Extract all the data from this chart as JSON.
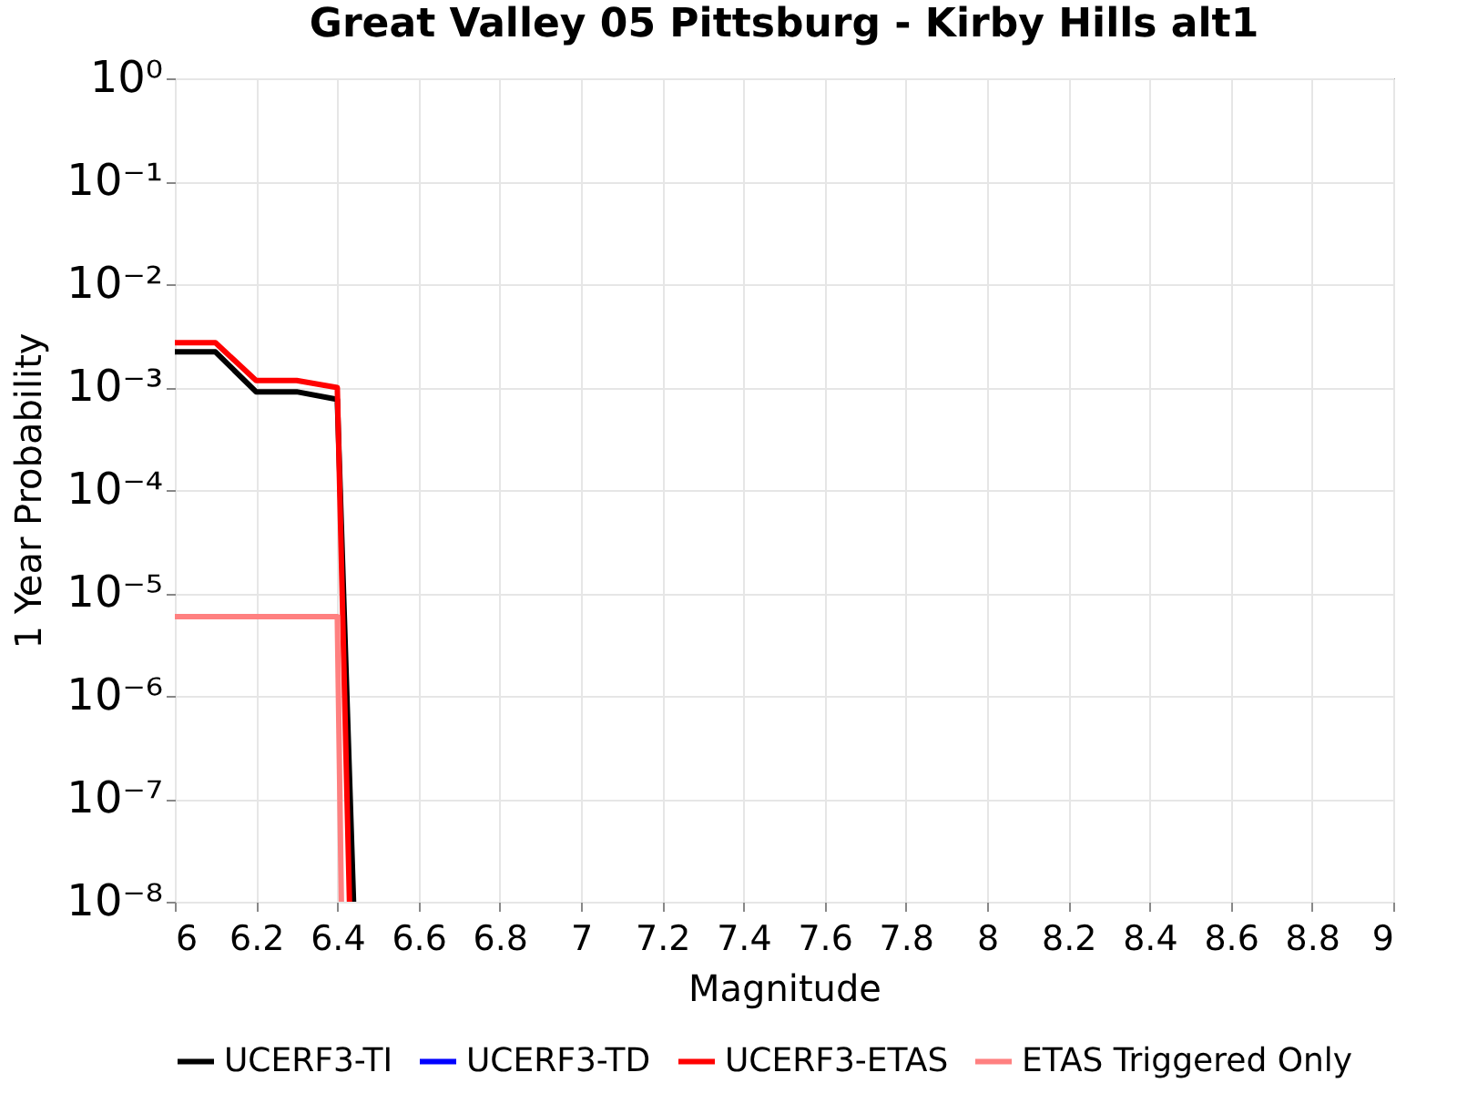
{
  "chart_data": {
    "type": "line",
    "title": "Great Valley 05 Pittsburg - Kirby Hills alt1",
    "xlabel": "Magnitude",
    "ylabel": "1 Year Probability",
    "log": "y",
    "grid": true,
    "legend": "bottom",
    "marker": "none",
    "line_style": "solid",
    "xlim": [
      6,
      9
    ],
    "xticks": [
      6,
      6.2,
      6.4,
      6.6,
      6.8,
      7,
      7.2,
      7.4,
      7.6,
      7.8,
      8,
      8.2,
      8.4,
      8.6,
      8.8,
      9
    ],
    "ylim": [
      1e-08,
      1
    ],
    "yticks": [
      {
        "value": 1e-08,
        "label": "10⁻⁸"
      },
      {
        "value": 1e-07,
        "label": "10⁻⁷"
      },
      {
        "value": 1e-06,
        "label": "10⁻⁶"
      },
      {
        "value": 1e-05,
        "label": "10⁻⁵"
      },
      {
        "value": 0.0001,
        "label": "10⁻⁴"
      },
      {
        "value": 0.001,
        "label": "10⁻³"
      },
      {
        "value": 0.01,
        "label": "10⁻²"
      },
      {
        "value": 0.1,
        "label": "10⁻¹"
      },
      {
        "value": 1,
        "label": "10⁰"
      }
    ],
    "series": [
      {
        "name": "UCERF3-TI",
        "color": "#000000",
        "x": [
          6,
          6.1,
          6.2,
          6.3,
          6.4,
          6.44
        ],
        "values": [
          0.0022,
          0.0022,
          0.0009,
          0.0009,
          0.00076,
          1e-08
        ]
      },
      {
        "name": "UCERF3-TD",
        "color": "#0000ff"
      },
      {
        "name": "UCERF3-ETAS",
        "color": "#ff0000",
        "x": [
          6,
          6.1,
          6.2,
          6.3,
          6.4,
          6.43
        ],
        "values": [
          0.0027,
          0.0027,
          0.00116,
          0.00116,
          0.00099,
          1e-08
        ]
      },
      {
        "name": "ETAS Triggered Only",
        "color": "#ff8080",
        "x": [
          6,
          6.4,
          6.41
        ],
        "values": [
          5.9e-06,
          5.9e-06,
          1e-08
        ]
      }
    ]
  }
}
